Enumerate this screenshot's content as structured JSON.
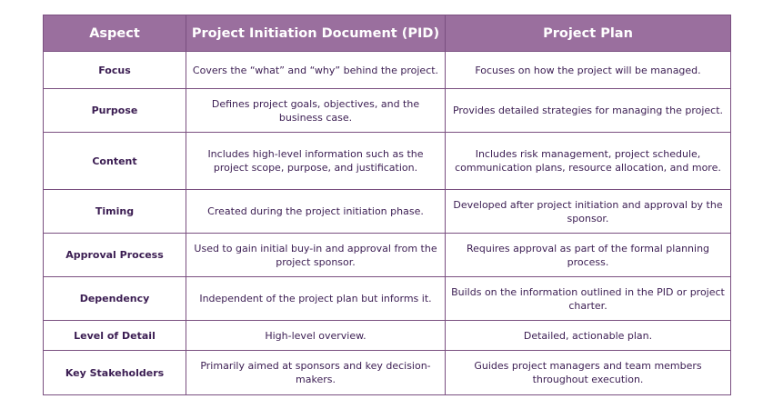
{
  "headers": [
    "Aspect",
    "Project Initiation Document (PID)",
    "Project Plan"
  ],
  "rows": [
    {
      "aspect": "Focus",
      "pid": "Covers the “what” and “why” behind the project.",
      "plan": "Focuses on how the project will be managed."
    },
    {
      "aspect": "Purpose",
      "pid": "Defines project goals, objectives, and the business case.",
      "plan": "Provides detailed strategies for managing the project."
    },
    {
      "aspect": "Content",
      "pid": "Includes high-level information such as the project scope, purpose, and justification.",
      "plan": "Includes risk management, project schedule, communication plans, resource allocation, and more."
    },
    {
      "aspect": "Timing",
      "pid": "Created during the project initiation phase.",
      "plan": "Developed after project initiation and approval by the sponsor."
    },
    {
      "aspect": "Approval Process",
      "pid": "Used to gain initial buy-in and approval from the project sponsor.",
      "plan": "Requires approval as part of the formal planning process."
    },
    {
      "aspect": "Dependency",
      "pid": "Independent of the project plan but informs it.",
      "plan": "Builds on the information outlined in the PID or project charter."
    },
    {
      "aspect": "Level of Detail",
      "pid": "High-level overview.",
      "plan": "Detailed, actionable plan."
    },
    {
      "aspect": "Key Stakeholders",
      "pid": "Primarily aimed at sponsors and key decision-makers.",
      "plan": "Guides project managers and team members throughout execution."
    }
  ]
}
